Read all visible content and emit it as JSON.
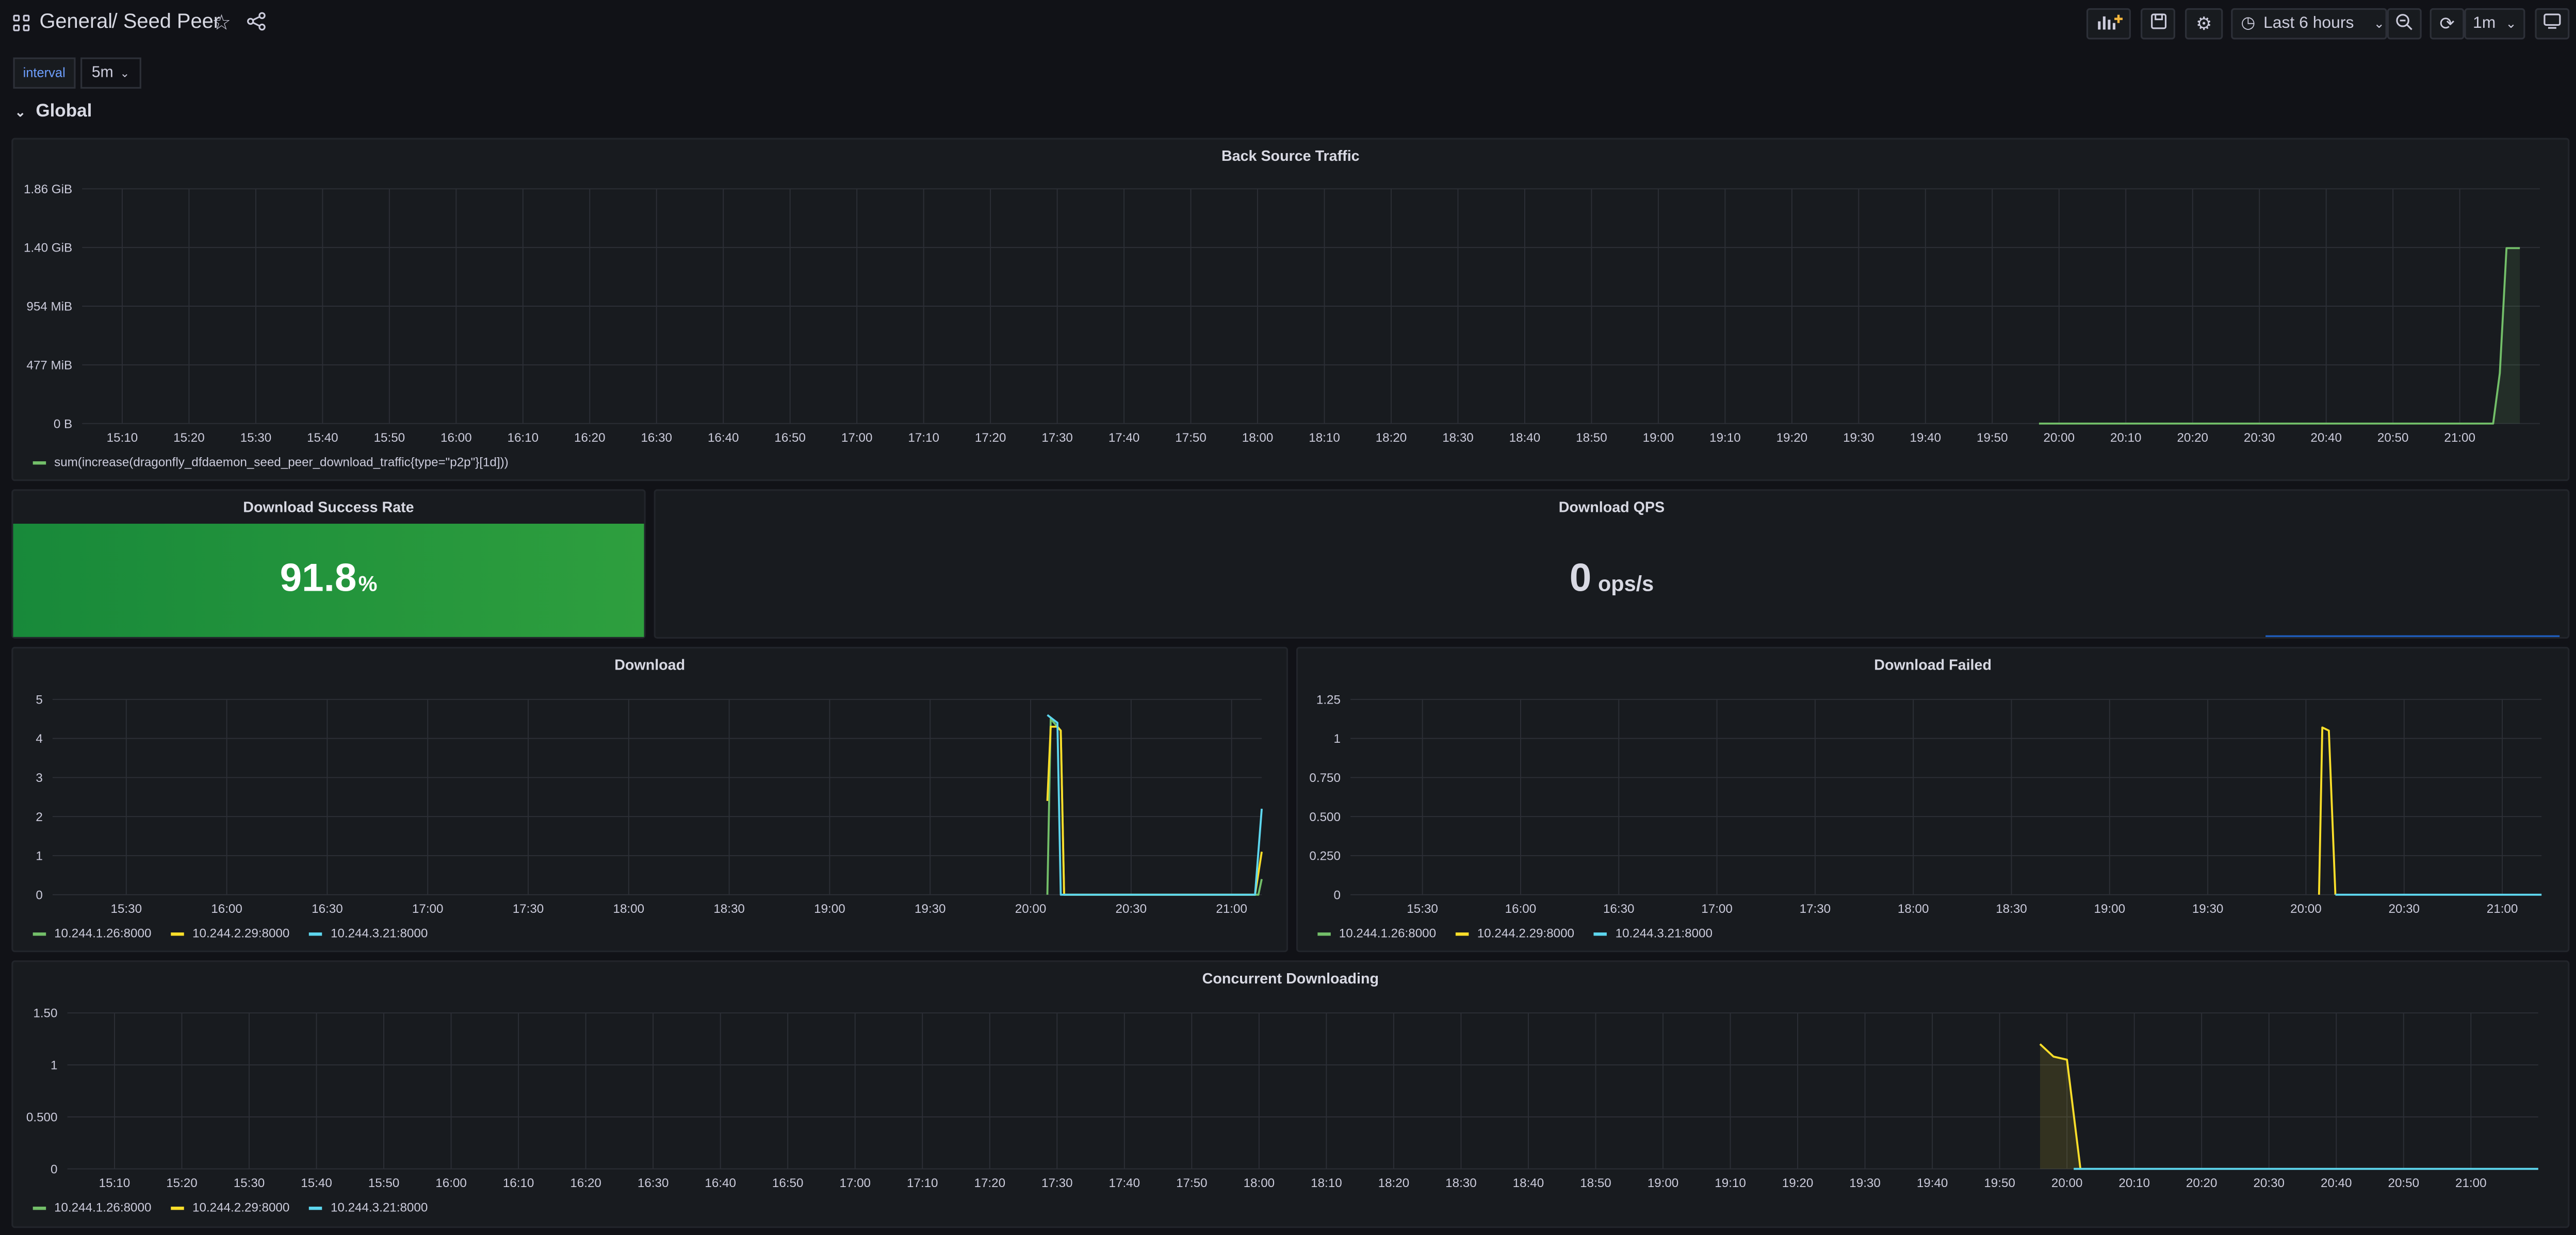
{
  "header": {
    "folder": "General",
    "separator": "/",
    "title": "Seed Peer",
    "time_range_label": "Last 6 hours",
    "refresh_interval": "1m",
    "icons": {
      "apps": "apps-icon",
      "star": "star-icon",
      "share": "share-icon",
      "add_panel": "add-panel-icon",
      "save": "save-icon",
      "settings": "gear-icon",
      "clock": "clock-icon",
      "zoom_out": "zoom-out-icon",
      "refresh": "refresh-icon",
      "tv_mode": "tv-mode-icon"
    }
  },
  "variables": [
    {
      "label": "interval",
      "value": "5m"
    }
  ],
  "row": {
    "title": "Global"
  },
  "colors": {
    "green": "#73bf69",
    "yellow": "#fade2a",
    "cyan": "#5dd6ee",
    "stat_green": "#299c46"
  },
  "panels": {
    "back_source_traffic": {
      "title": "Back Source Traffic",
      "legend": [
        "sum(increase(dragonfly_dfdaemon_seed_peer_download_traffic{type=\"p2p\"}[1d]))"
      ],
      "chart_data": {
        "type": "line",
        "title": "Back Source Traffic",
        "y_ticks": [
          "0 B",
          "477 MiB",
          "954 MiB",
          "1.40 GiB",
          "1.86 GiB"
        ],
        "y_unit": "GiB",
        "ylim": [
          0,
          1.86
        ],
        "x_ticks": [
          "15:10",
          "15:20",
          "15:30",
          "15:40",
          "15:50",
          "16:00",
          "16:10",
          "16:20",
          "16:30",
          "16:40",
          "16:50",
          "17:00",
          "17:10",
          "17:20",
          "17:30",
          "17:40",
          "17:50",
          "18:00",
          "18:10",
          "18:20",
          "18:30",
          "18:40",
          "18:50",
          "19:00",
          "19:10",
          "19:20",
          "19:30",
          "19:40",
          "19:50",
          "20:00",
          "20:10",
          "20:20",
          "20:30",
          "20:40",
          "20:50",
          "21:00"
        ],
        "x_range_minutes": [
          904,
          1272
        ],
        "series": [
          {
            "name": "sum(increase(dragonfly_dfdaemon_seed_peer_download_traffic{type=\"p2p\"}[1d]))",
            "color": "#73bf69",
            "fill": true,
            "points": [
              [
                1197,
                0
              ],
              [
                1265,
                0
              ],
              [
                1266,
                0.4
              ],
              [
                1267,
                1.39
              ],
              [
                1269,
                1.39
              ]
            ]
          }
        ]
      }
    },
    "download_success_rate": {
      "title": "Download Success Rate",
      "value": "91.8",
      "unit": "%"
    },
    "download_qps": {
      "title": "Download QPS",
      "value": "0",
      "unit": "ops/s"
    },
    "download": {
      "title": "Download",
      "legend": [
        "10.244.1.26:8000",
        "10.244.2.29:8000",
        "10.244.3.21:8000"
      ],
      "chart_data": {
        "type": "line",
        "title": "Download",
        "y_ticks": [
          "0",
          "1",
          "2",
          "3",
          "4",
          "5"
        ],
        "ylim": [
          0,
          5
        ],
        "x_ticks": [
          "15:30",
          "16:00",
          "16:30",
          "17:00",
          "17:30",
          "18:00",
          "18:30",
          "19:00",
          "19:30",
          "20:00",
          "20:30",
          "21:00"
        ],
        "x_range_minutes": [
          908,
          1269
        ],
        "series": [
          {
            "name": "10.244.1.26:8000",
            "color": "#73bf69",
            "points": [
              [
                1205,
                0
              ],
              [
                1206,
                4.5
              ],
              [
                1209,
                4.2
              ],
              [
                1210,
                0
              ],
              [
                1268,
                0
              ],
              [
                1269,
                0.4
              ]
            ]
          },
          {
            "name": "10.244.2.29:8000",
            "color": "#fade2a",
            "points": [
              [
                1205,
                2.4
              ],
              [
                1206,
                4.3
              ],
              [
                1208,
                4.3
              ],
              [
                1209,
                4.2
              ],
              [
                1210,
                0
              ],
              [
                1267,
                0
              ],
              [
                1269,
                1.1
              ]
            ]
          },
          {
            "name": "10.244.3.21:8000",
            "color": "#5dd6ee",
            "points": [
              [
                1205,
                4.6
              ],
              [
                1208,
                4.4
              ],
              [
                1209,
                0
              ],
              [
                1210,
                0
              ],
              [
                1267,
                0
              ],
              [
                1269,
                2.2
              ]
            ]
          }
        ]
      }
    },
    "download_failed": {
      "title": "Download Failed",
      "legend": [
        "10.244.1.26:8000",
        "10.244.2.29:8000",
        "10.244.3.21:8000"
      ],
      "chart_data": {
        "type": "line",
        "title": "Download Failed",
        "y_ticks": [
          "0",
          "0.250",
          "0.500",
          "0.750",
          "1",
          "1.25"
        ],
        "ylim": [
          0,
          1.25
        ],
        "x_ticks": [
          "15:30",
          "16:00",
          "16:30",
          "17:00",
          "17:30",
          "18:00",
          "18:30",
          "19:00",
          "19:30",
          "20:00",
          "20:30",
          "21:00"
        ],
        "x_range_minutes": [
          908,
          1272
        ],
        "series": [
          {
            "name": "10.244.1.26:8000",
            "color": "#73bf69",
            "points": []
          },
          {
            "name": "10.244.2.29:8000",
            "color": "#fade2a",
            "points": [
              [
                1204,
                0
              ],
              [
                1205,
                1.07
              ],
              [
                1207,
                1.05
              ],
              [
                1209,
                0
              ]
            ]
          },
          {
            "name": "10.244.3.21:8000",
            "color": "#5dd6ee",
            "points": [
              [
                1209,
                0
              ],
              [
                1272,
                0
              ]
            ]
          }
        ]
      }
    },
    "concurrent_downloading": {
      "title": "Concurrent Downloading",
      "legend": [
        "10.244.1.26:8000",
        "10.244.2.29:8000",
        "10.244.3.21:8000"
      ],
      "chart_data": {
        "type": "line",
        "title": "Concurrent Downloading",
        "y_ticks": [
          "0",
          "0.500",
          "1",
          "1.50"
        ],
        "ylim": [
          0,
          1.5
        ],
        "x_ticks": [
          "15:10",
          "15:20",
          "15:30",
          "15:40",
          "15:50",
          "16:00",
          "16:10",
          "16:20",
          "16:30",
          "16:40",
          "16:50",
          "17:00",
          "17:10",
          "17:20",
          "17:30",
          "17:40",
          "17:50",
          "18:00",
          "18:10",
          "18:20",
          "18:30",
          "18:40",
          "18:50",
          "19:00",
          "19:10",
          "19:20",
          "19:30",
          "19:40",
          "19:50",
          "20:00",
          "20:10",
          "20:20",
          "20:30",
          "20:40",
          "20:50",
          "21:00"
        ],
        "x_range_minutes": [
          903,
          1270
        ],
        "series": [
          {
            "name": "10.244.1.26:8000",
            "color": "#73bf69",
            "points": []
          },
          {
            "name": "10.244.2.29:8000",
            "color": "#fade2a",
            "fill": true,
            "points": [
              [
                1196,
                1.2
              ],
              [
                1198,
                1.08
              ],
              [
                1200,
                1.05
              ],
              [
                1202,
                0
              ]
            ]
          },
          {
            "name": "10.244.3.21:8000",
            "color": "#5dd6ee",
            "points": [
              [
                1201,
                0
              ],
              [
                1270,
                0
              ]
            ]
          }
        ]
      }
    }
  }
}
